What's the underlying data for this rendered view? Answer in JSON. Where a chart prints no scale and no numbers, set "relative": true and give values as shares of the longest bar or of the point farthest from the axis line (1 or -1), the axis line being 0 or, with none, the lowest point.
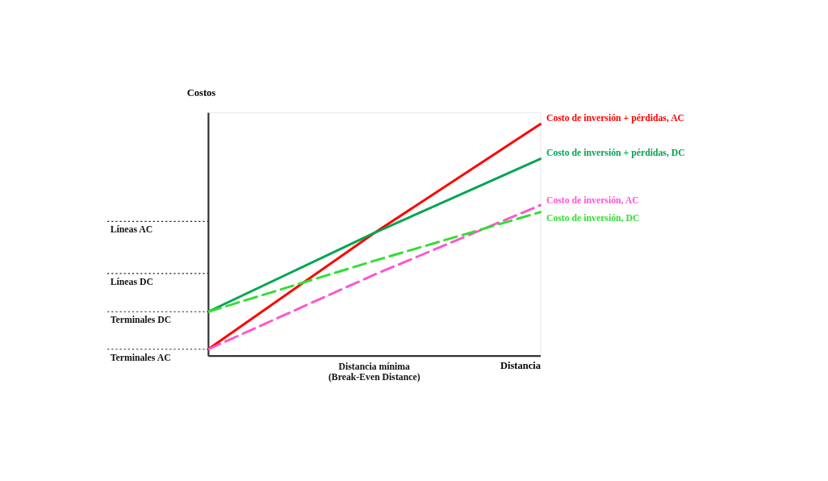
{
  "chart_data": {
    "type": "line",
    "relative": true,
    "xlabel": "Distancia",
    "ylabel": "Costos",
    "marker": "none",
    "categories": [
      null,
      null,
      null
    ],
    "series": [
      {
        "name": "Costo de inversión + pérdidas, AC",
        "color": "#ff0000",
        "line_style": "solid",
        "values": [
          0.028,
          0.53,
          1.0
        ]
      },
      {
        "name": "Costo de inversión + pérdidas, DC",
        "color": "#00a550",
        "line_style": "solid",
        "values": [
          0.19,
          0.53,
          0.85
        ]
      },
      {
        "name": "Costo de inversión, AC",
        "color": "#ff55cc",
        "line_style": "dashed",
        "values": [
          0.028,
          0.35,
          0.65
        ]
      },
      {
        "name": "Costo de inversión, DC",
        "color": "#33dd33",
        "line_style": "dashed",
        "values": [
          0.19,
          0.41,
          0.62
        ]
      }
    ],
    "ref_lines": [
      {
        "axis": "y",
        "value": 0.58,
        "label": "Líneas AC",
        "line_style": "dotted"
      },
      {
        "axis": "y",
        "value": 0.355,
        "label": "Líneas DC",
        "line_style": "dotted"
      },
      {
        "axis": "y",
        "value": 0.19,
        "label": "Terminales DC",
        "line_style": "dotted"
      },
      {
        "axis": "y",
        "value": 0.028,
        "label": "Terminales AC",
        "line_style": "dotted"
      }
    ],
    "annotations": [
      "Distancia mínima\n(Break-Even Distance)"
    ]
  }
}
